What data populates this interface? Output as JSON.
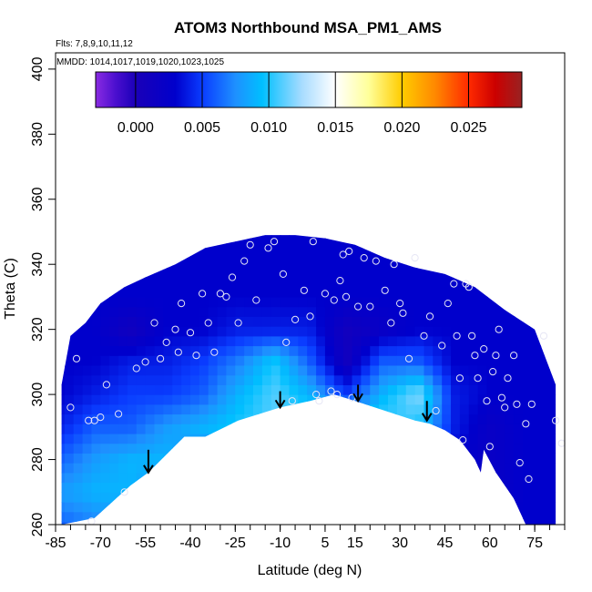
{
  "chart_data": {
    "type": "heatmap",
    "title": "ATOM3 Northbound MSA_PM1_AMS",
    "flights_note": "Flts: 7,8,9,10,11,12",
    "dates_note": "MMDD: 1014,1017,1019,1020,1023,1025",
    "xlabel": "Latitude (deg N)",
    "ylabel": "Theta (C)",
    "xlim": [
      -85,
      85
    ],
    "ylim": [
      260,
      405
    ],
    "x_ticks": [
      -85,
      -70,
      -55,
      -40,
      -25,
      -10,
      5,
      15,
      30,
      45,
      60,
      75
    ],
    "y_ticks": [
      260,
      280,
      300,
      320,
      340,
      360,
      380,
      400
    ],
    "colorbar": {
      "range": [
        -0.003,
        0.029
      ],
      "ticks": [
        0.0,
        0.005,
        0.01,
        0.015,
        0.02,
        0.025
      ],
      "tick_labels": [
        "0.000",
        "0.005",
        "0.010",
        "0.015",
        "0.020",
        "0.025"
      ],
      "stops": [
        {
          "v": -0.003,
          "color": "#8a2be2"
        },
        {
          "v": -0.0015,
          "color": "#4b0fcf"
        },
        {
          "v": 0.0,
          "color": "#1a00b8"
        },
        {
          "v": 0.003,
          "color": "#0000cc"
        },
        {
          "v": 0.005,
          "color": "#0a3cff"
        },
        {
          "v": 0.0075,
          "color": "#1e90ff"
        },
        {
          "v": 0.0095,
          "color": "#00bfff"
        },
        {
          "v": 0.0125,
          "color": "#a8dcff"
        },
        {
          "v": 0.015,
          "color": "#ffffff"
        },
        {
          "v": 0.0175,
          "color": "#ffff99"
        },
        {
          "v": 0.02,
          "color": "#ffcc00"
        },
        {
          "v": 0.0225,
          "color": "#ff8800"
        },
        {
          "v": 0.025,
          "color": "#ff2a00"
        },
        {
          "v": 0.027,
          "color": "#cc0000"
        },
        {
          "v": 0.029,
          "color": "#992222"
        }
      ]
    },
    "top_boundary": [
      [
        -83,
        303
      ],
      [
        -80,
        318
      ],
      [
        -75,
        322
      ],
      [
        -70,
        328
      ],
      [
        -62,
        333
      ],
      [
        -55,
        336
      ],
      [
        -45,
        340
      ],
      [
        -35,
        345
      ],
      [
        -25,
        347
      ],
      [
        -15,
        349
      ],
      [
        -5,
        349
      ],
      [
        5,
        348
      ],
      [
        15,
        346
      ],
      [
        25,
        342
      ],
      [
        35,
        339
      ],
      [
        45,
        337
      ],
      [
        55,
        333
      ],
      [
        65,
        326
      ],
      [
        75,
        320
      ],
      [
        82,
        303
      ]
    ],
    "bottom_boundary": [
      [
        -83,
        260
      ],
      [
        -72,
        262
      ],
      [
        -60,
        272
      ],
      [
        -54,
        276
      ],
      [
        -42,
        287
      ],
      [
        -35,
        287
      ],
      [
        -24,
        292
      ],
      [
        -10,
        296
      ],
      [
        0,
        298
      ],
      [
        8,
        300
      ],
      [
        15,
        298
      ],
      [
        25,
        295
      ],
      [
        35,
        292
      ],
      [
        40,
        291
      ],
      [
        45,
        289
      ],
      [
        50,
        286
      ],
      [
        55,
        280
      ],
      [
        57,
        276
      ],
      [
        58,
        283
      ],
      [
        62,
        276
      ],
      [
        68,
        268
      ],
      [
        72,
        260
      ],
      [
        82,
        260
      ]
    ],
    "field_grid": {
      "lats": [
        -84,
        -72,
        -60,
        -48,
        -36,
        -24,
        -12,
        0,
        12,
        24,
        36,
        48,
        60,
        72,
        84
      ],
      "thetas": [
        260,
        270,
        280,
        290,
        300,
        310,
        320,
        330,
        340,
        350
      ],
      "values": [
        [
          0.006,
          0.007,
          0.008,
          0.005,
          0.005,
          0.006,
          0.005,
          0.005,
          0.004,
          0.004,
          0.004,
          0.003,
          0.003,
          0.003,
          0.003
        ],
        [
          0.008,
          0.009,
          0.009,
          0.007,
          0.006,
          0.006,
          0.006,
          0.006,
          0.005,
          0.005,
          0.004,
          0.003,
          0.002,
          0.003,
          0.003
        ],
        [
          0.006,
          0.008,
          0.009,
          0.009,
          0.007,
          0.007,
          0.007,
          0.008,
          0.006,
          0.006,
          0.005,
          0.003,
          0.002,
          0.003,
          0.003
        ],
        [
          0.004,
          0.006,
          0.006,
          0.008,
          0.009,
          0.01,
          0.011,
          0.011,
          0.01,
          0.011,
          0.01,
          0.004,
          0.002,
          0.003,
          0.003
        ],
        [
          0.003,
          0.004,
          0.005,
          0.005,
          0.006,
          0.009,
          0.011,
          0.009,
          0.005,
          0.009,
          0.012,
          0.004,
          0.003,
          0.003,
          0.003
        ],
        [
          0.003,
          0.003,
          0.004,
          0.004,
          0.005,
          0.007,
          0.01,
          0.006,
          0.001,
          0.006,
          0.006,
          0.003,
          0.003,
          0.003,
          0.003
        ],
        [
          0.003,
          0.003,
          0.001,
          0.003,
          0.003,
          0.004,
          0.004,
          0.004,
          0.001,
          0.002,
          0.003,
          0.003,
          0.003,
          0.003,
          0.003
        ],
        [
          0.003,
          0.003,
          0.003,
          0.003,
          0.003,
          0.003,
          0.003,
          0.003,
          0.003,
          0.003,
          0.003,
          0.003,
          0.003,
          0.003,
          0.003
        ],
        [
          0.003,
          0.003,
          0.003,
          0.003,
          0.003,
          0.003,
          0.003,
          0.003,
          0.003,
          0.003,
          0.003,
          0.003,
          0.003,
          0.003,
          0.003
        ],
        [
          0.003,
          0.003,
          0.003,
          0.003,
          0.003,
          0.003,
          0.003,
          0.003,
          0.003,
          0.003,
          0.003,
          0.003,
          0.003,
          0.003,
          0.003
        ]
      ]
    },
    "samples": [
      [
        -80,
        296
      ],
      [
        -78,
        311
      ],
      [
        -74,
        292
      ],
      [
        -73,
        261
      ],
      [
        -72,
        292
      ],
      [
        -70,
        293
      ],
      [
        -68,
        303
      ],
      [
        -64,
        294
      ],
      [
        -62,
        270
      ],
      [
        -58,
        308
      ],
      [
        -55,
        310
      ],
      [
        -52,
        322
      ],
      [
        -50,
        311
      ],
      [
        -48,
        316
      ],
      [
        -45,
        320
      ],
      [
        -44,
        313
      ],
      [
        -43,
        328
      ],
      [
        -40,
        319
      ],
      [
        -38,
        312
      ],
      [
        -36,
        331
      ],
      [
        -34,
        322
      ],
      [
        -32,
        313
      ],
      [
        -30,
        331
      ],
      [
        -28,
        330
      ],
      [
        -26,
        336
      ],
      [
        -24,
        322
      ],
      [
        -22,
        341
      ],
      [
        -20,
        346
      ],
      [
        -18,
        329
      ],
      [
        -14,
        345
      ],
      [
        -12,
        347
      ],
      [
        -9,
        337
      ],
      [
        -8,
        316
      ],
      [
        -6,
        298
      ],
      [
        -5,
        323
      ],
      [
        -2,
        332
      ],
      [
        0,
        324
      ],
      [
        1,
        347
      ],
      [
        2,
        300
      ],
      [
        3,
        298
      ],
      [
        5,
        331
      ],
      [
        7,
        301
      ],
      [
        8,
        329
      ],
      [
        9,
        300
      ],
      [
        10,
        335
      ],
      [
        11,
        343
      ],
      [
        12,
        330
      ],
      [
        13,
        344
      ],
      [
        14,
        299
      ],
      [
        16,
        327
      ],
      [
        18,
        342
      ],
      [
        20,
        327
      ],
      [
        22,
        341
      ],
      [
        25,
        332
      ],
      [
        27,
        322
      ],
      [
        28,
        340
      ],
      [
        30,
        328
      ],
      [
        31,
        325
      ],
      [
        33,
        311
      ],
      [
        35,
        342
      ],
      [
        38,
        318
      ],
      [
        40,
        324
      ],
      [
        42,
        295
      ],
      [
        44,
        315
      ],
      [
        46,
        328
      ],
      [
        48,
        334
      ],
      [
        49,
        318
      ],
      [
        50,
        305
      ],
      [
        51,
        286
      ],
      [
        52,
        334
      ],
      [
        53,
        333
      ],
      [
        54,
        318
      ],
      [
        55,
        312
      ],
      [
        56,
        305
      ],
      [
        58,
        314
      ],
      [
        59,
        298
      ],
      [
        60,
        284
      ],
      [
        61,
        307
      ],
      [
        62,
        312
      ],
      [
        63,
        320
      ],
      [
        64,
        299
      ],
      [
        65,
        296
      ],
      [
        66,
        305
      ],
      [
        68,
        312
      ],
      [
        69,
        297
      ],
      [
        70,
        279
      ],
      [
        72,
        291
      ],
      [
        73,
        274
      ],
      [
        74,
        297
      ],
      [
        78,
        318
      ],
      [
        82,
        292
      ],
      [
        84,
        285
      ]
    ],
    "arrows": [
      {
        "lat": -54,
        "theta_from": 283,
        "theta_to": 276
      },
      {
        "lat": -10,
        "theta_from": 301,
        "theta_to": 296
      },
      {
        "lat": 16,
        "theta_from": 303,
        "theta_to": 298
      },
      {
        "lat": 39,
        "theta_from": 298,
        "theta_to": 292
      }
    ]
  }
}
